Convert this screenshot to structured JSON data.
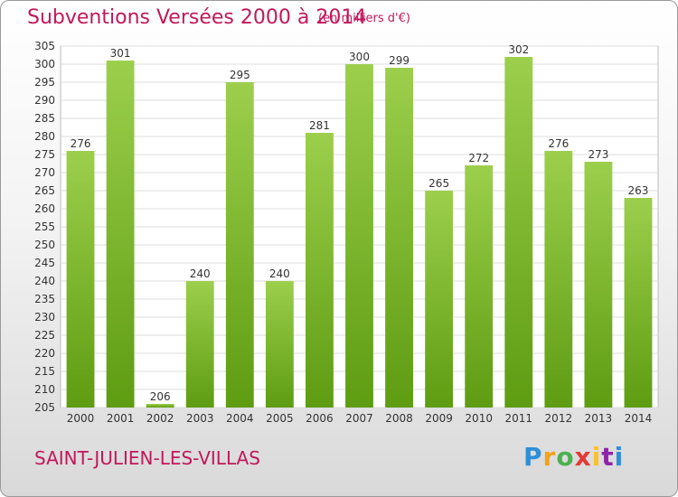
{
  "header": {
    "title": "Subventions Versées 2000 à 2014",
    "unit": "(en milliers d'€)"
  },
  "footer": {
    "place": "SAINT-JULIEN-LES-VILLAS",
    "logo_letters": [
      "P",
      "r",
      "o",
      "x",
      "i",
      "t",
      "i"
    ]
  },
  "colors": {
    "title": "#c2185b",
    "bar_top": "#9ccf4c",
    "bar_bottom": "#5e9c12",
    "grid": "#dddddd"
  },
  "chart_data": {
    "type": "bar",
    "title": "Subventions Versées 2000 à 2014",
    "subtitle": "(en milliers d'€)",
    "xlabel": "",
    "ylabel": "",
    "categories": [
      "2000",
      "2001",
      "2002",
      "2003",
      "2004",
      "2005",
      "2006",
      "2007",
      "2008",
      "2009",
      "2010",
      "2011",
      "2012",
      "2013",
      "2014"
    ],
    "values": [
      276,
      301,
      206,
      240,
      295,
      240,
      281,
      300,
      299,
      265,
      272,
      302,
      276,
      273,
      263
    ],
    "ylim": [
      205,
      305
    ],
    "ytick_step": 5,
    "grid": true,
    "data_labels": true
  }
}
